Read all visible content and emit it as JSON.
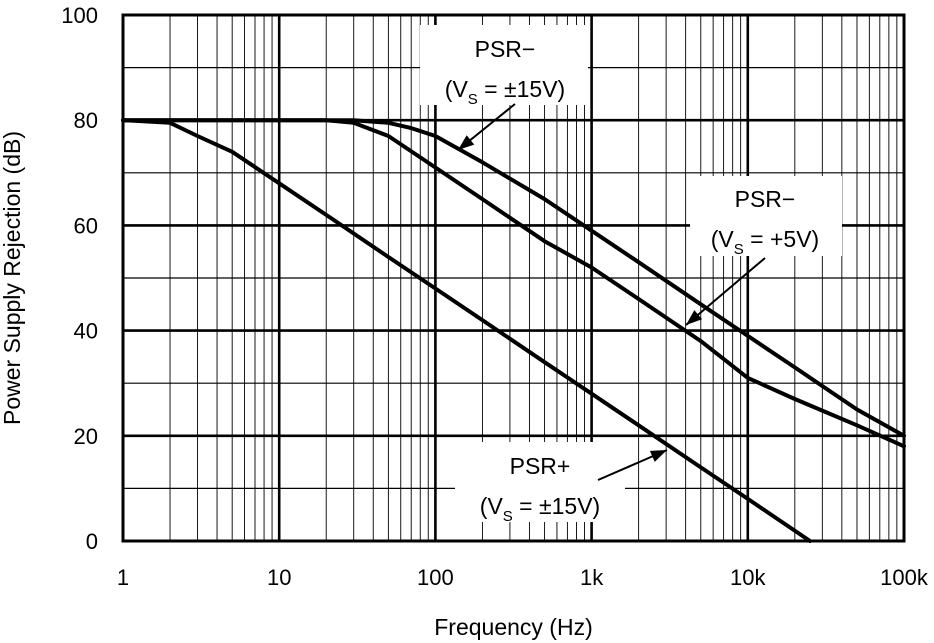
{
  "chart_data": {
    "type": "line",
    "xscale": "log",
    "xlim": [
      1,
      100000
    ],
    "ylim": [
      0,
      100
    ],
    "grid": true,
    "xlabel": "Frequency (Hz)",
    "ylabel": "Power Supply Rejection (dB)",
    "x_ticks": [
      1,
      10,
      100,
      1000,
      10000,
      100000
    ],
    "x_tick_labels": [
      "1",
      "10",
      "100",
      "1k",
      "10k",
      "100k"
    ],
    "y_ticks": [
      0,
      20,
      40,
      60,
      80,
      100
    ],
    "y_tick_labels": [
      "0",
      "20",
      "40",
      "60",
      "80",
      "100"
    ],
    "series": [
      {
        "name": "PSR− (VS = ±15V)",
        "x": [
          1,
          10,
          30,
          50,
          70,
          100,
          200,
          500,
          1000,
          2000,
          5000,
          10000,
          20000,
          50000,
          100000
        ],
        "y": [
          80,
          80,
          80,
          79.5,
          78.5,
          77,
          72,
          65,
          59,
          53,
          45,
          39,
          33,
          25,
          20
        ]
      },
      {
        "name": "PSR− (VS = +5V)",
        "x": [
          1,
          10,
          20,
          30,
          50,
          100,
          200,
          500,
          1000,
          2000,
          5000,
          10000,
          20000,
          50000,
          100000
        ],
        "y": [
          80,
          80,
          80,
          79.5,
          77,
          71,
          65,
          57,
          52,
          46,
          38,
          31,
          27,
          22,
          18
        ]
      },
      {
        "name": "PSR+ (VS = ±15V)",
        "x": [
          1,
          2,
          3,
          5,
          10,
          20,
          50,
          100,
          200,
          500,
          1000,
          2000,
          5000,
          10000,
          25000
        ],
        "y": [
          80,
          79.5,
          77,
          74,
          68,
          62,
          54,
          48,
          42,
          34,
          28,
          22,
          14,
          8,
          0
        ]
      }
    ],
    "annotations": [
      {
        "line1": "PSR−",
        "line2_pre": "(V",
        "line2_sub": "S",
        "line2_post": " = ±15V)",
        "target_x": 100,
        "target_y": 76
      },
      {
        "line1": "PSR−",
        "line2_pre": "(V",
        "line2_sub": "S",
        "line2_post": " = +5V)",
        "target_x": 3500,
        "target_y": 40
      },
      {
        "line1": "PSR+",
        "line2_pre": "(V",
        "line2_sub": "S",
        "line2_post": " = ±15V)",
        "target_x": 2500,
        "target_y": 18
      }
    ]
  }
}
